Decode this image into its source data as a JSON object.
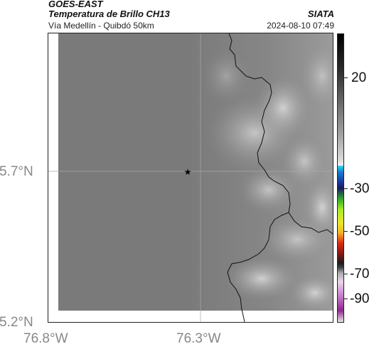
{
  "header": {
    "source": "GOES-EAST",
    "product": "Temperatura de Brillo CH13",
    "agency": "SIATA",
    "region": "Vía Medellín - Quibdó 50km",
    "datetime": "2024-08-10 07:49"
  },
  "axes": {
    "lat_labels": [
      "5.7°N",
      "5.2°N"
    ],
    "lon_labels": [
      "76.8°W",
      "76.3°W"
    ]
  },
  "colorbar": {
    "labels": [
      "20",
      "-30",
      "-50",
      "-70",
      "-90"
    ],
    "values": [
      20,
      -30,
      -50,
      -70,
      -90
    ],
    "range": [
      -95,
      45
    ]
  },
  "marker": {
    "symbol": "★",
    "lat": 5.7,
    "lon": -76.35
  },
  "colors": {
    "map_gray": "#7b7b7b",
    "coastline": "#111111",
    "gridline": "#aaaaaa"
  }
}
